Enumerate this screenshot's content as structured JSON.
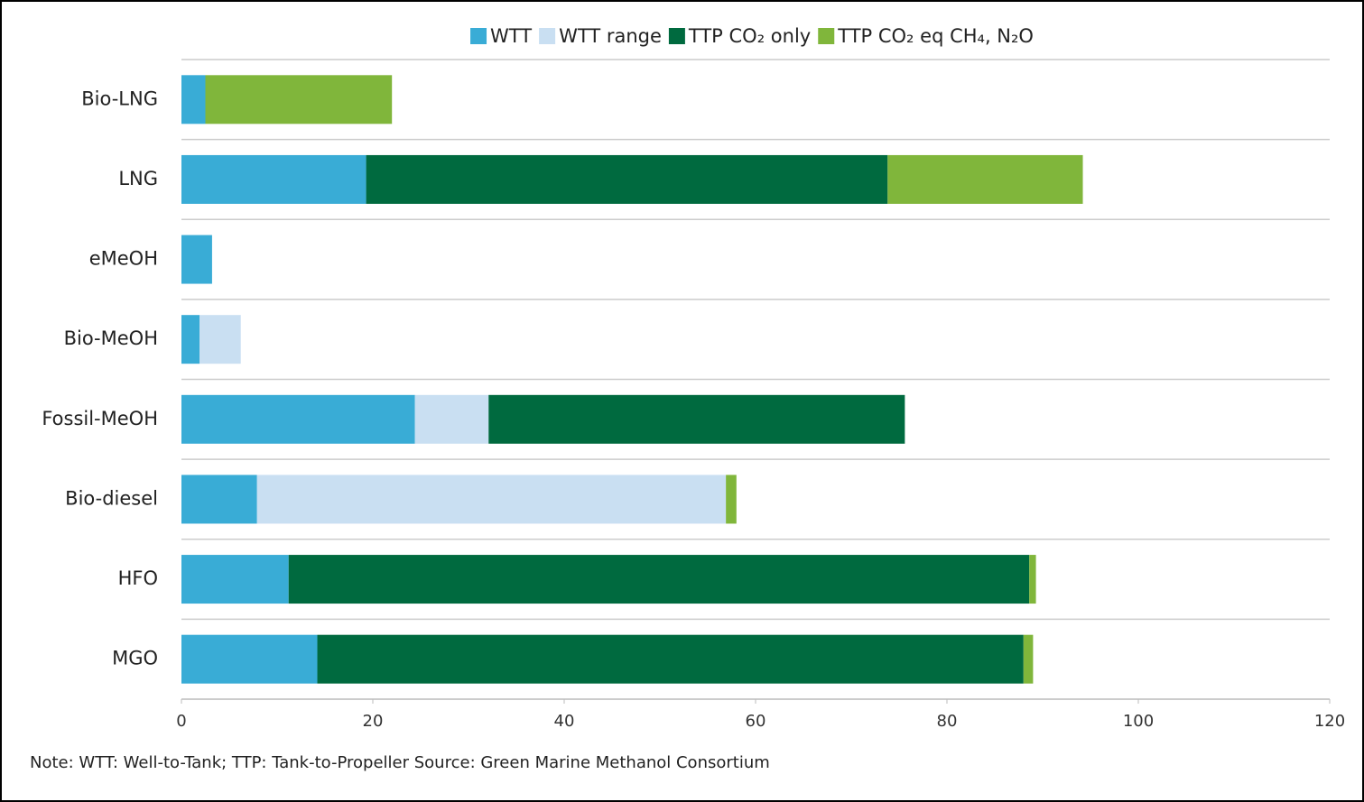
{
  "chart_data": {
    "type": "stacked-bar-horizontal",
    "categories": [
      "Bio-LNG",
      "LNG",
      "eMeOH",
      "Bio-MeOH",
      "Fossil-MeOH",
      "Bio-diesel",
      "HFO",
      "MGO"
    ],
    "series": [
      {
        "name": "WTT",
        "color": "#39acd6",
        "values": [
          2.5,
          19.3,
          3.2,
          1.9,
          24.4,
          7.9,
          11.2,
          14.2
        ]
      },
      {
        "name": "WTT range",
        "color": "#c9dff2",
        "values": [
          0,
          0,
          0,
          4.3,
          7.7,
          49.0,
          0,
          0
        ]
      },
      {
        "name": "TTP CO₂ only",
        "color": "#006a3f",
        "values": [
          0,
          54.5,
          0,
          0,
          43.5,
          0,
          77.4,
          73.8
        ]
      },
      {
        "name": "TTP CO₂ eq CH₄, N₂O",
        "color": "#80b63b",
        "values": [
          19.5,
          20.4,
          0,
          0,
          0,
          1.1,
          0.7,
          1.0
        ]
      }
    ],
    "xlim": [
      0,
      120
    ],
    "xticks": [
      0,
      20,
      40,
      60,
      80,
      100,
      120
    ],
    "note": "Note: WTT: Well-to-Tank; TTP: Tank-to-Propeller Source: Green Marine Methanol Consortium"
  }
}
